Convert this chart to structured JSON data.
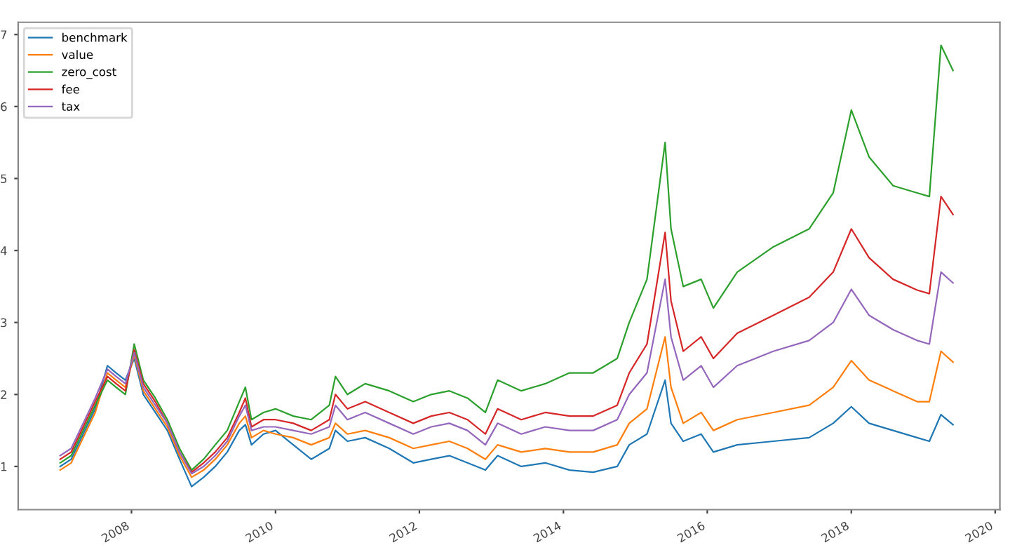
{
  "chart_data": {
    "type": "line",
    "x": [
      "2007-01-04",
      "2007-03",
      "2007-05",
      "2007-07",
      "2007-09",
      "2007-10-15",
      "2007-12",
      "2008-01-15",
      "2008-03",
      "2008-05",
      "2008-07",
      "2008-09",
      "2008-11",
      "2009-01",
      "2009-03",
      "2009-05",
      "2009-07",
      "2009-08",
      "2009-09",
      "2009-11",
      "2010-01",
      "2010-04",
      "2010-07",
      "2010-10",
      "2010-11",
      "2011-01",
      "2011-04",
      "2011-08",
      "2011-12",
      "2012-03",
      "2012-06",
      "2012-09",
      "2012-12",
      "2013-02",
      "2013-06",
      "2013-10",
      "2014-02",
      "2014-06",
      "2014-10",
      "2014-12",
      "2015-03",
      "2015-06",
      "2015-07",
      "2015-09",
      "2015-12",
      "2016-02",
      "2016-06",
      "2016-12",
      "2017-06",
      "2017-10",
      "2018-01",
      "2018-04",
      "2018-08",
      "2018-12",
      "2019-02",
      "2019-04",
      "2019-06"
    ],
    "series": [
      {
        "name": "benchmark",
        "color": "#1f77b4",
        "values": [
          1.0,
          1.1,
          1.45,
          1.8,
          2.4,
          2.3,
          2.2,
          2.5,
          2.0,
          1.75,
          1.5,
          1.1,
          0.72,
          0.85,
          1.0,
          1.2,
          1.5,
          1.58,
          1.3,
          1.45,
          1.5,
          1.3,
          1.1,
          1.25,
          1.5,
          1.35,
          1.4,
          1.25,
          1.05,
          1.1,
          1.15,
          1.05,
          0.95,
          1.15,
          1.0,
          1.05,
          0.95,
          0.92,
          1.0,
          1.3,
          1.45,
          2.2,
          1.6,
          1.35,
          1.45,
          1.2,
          1.3,
          1.35,
          1.4,
          1.6,
          1.83,
          1.6,
          1.5,
          1.4,
          1.35,
          1.72,
          1.58
        ]
      },
      {
        "name": "value",
        "color": "#ff7f0e",
        "values": [
          0.95,
          1.05,
          1.4,
          1.75,
          2.3,
          2.2,
          2.1,
          2.55,
          2.05,
          1.8,
          1.55,
          1.15,
          0.85,
          0.95,
          1.1,
          1.3,
          1.6,
          1.7,
          1.4,
          1.5,
          1.45,
          1.4,
          1.3,
          1.4,
          1.6,
          1.45,
          1.5,
          1.4,
          1.25,
          1.3,
          1.35,
          1.25,
          1.1,
          1.3,
          1.2,
          1.25,
          1.2,
          1.2,
          1.3,
          1.6,
          1.8,
          2.8,
          2.1,
          1.6,
          1.75,
          1.5,
          1.65,
          1.75,
          1.85,
          2.1,
          2.47,
          2.2,
          2.05,
          1.9,
          1.9,
          2.6,
          2.45
        ]
      },
      {
        "name": "zero_cost",
        "color": "#2ca02c",
        "values": [
          1.05,
          1.15,
          1.5,
          1.85,
          2.2,
          2.1,
          2.0,
          2.7,
          2.2,
          1.95,
          1.65,
          1.25,
          0.95,
          1.1,
          1.3,
          1.5,
          1.9,
          2.1,
          1.65,
          1.75,
          1.8,
          1.7,
          1.65,
          1.85,
          2.25,
          2.0,
          2.15,
          2.05,
          1.9,
          2.0,
          2.05,
          1.95,
          1.75,
          2.2,
          2.05,
          2.15,
          2.3,
          2.3,
          2.5,
          3.0,
          3.6,
          5.5,
          4.3,
          3.5,
          3.6,
          3.2,
          3.7,
          4.05,
          4.3,
          4.8,
          5.95,
          5.3,
          4.9,
          4.8,
          4.75,
          6.85,
          6.5
        ]
      },
      {
        "name": "fee",
        "color": "#d62728",
        "values": [
          1.1,
          1.2,
          1.55,
          1.9,
          2.25,
          2.15,
          2.05,
          2.62,
          2.15,
          1.9,
          1.6,
          1.2,
          0.92,
          1.05,
          1.2,
          1.4,
          1.75,
          1.95,
          1.55,
          1.65,
          1.65,
          1.6,
          1.5,
          1.65,
          2.0,
          1.8,
          1.9,
          1.75,
          1.6,
          1.7,
          1.75,
          1.65,
          1.45,
          1.8,
          1.65,
          1.75,
          1.7,
          1.7,
          1.85,
          2.3,
          2.7,
          4.25,
          3.3,
          2.6,
          2.8,
          2.5,
          2.85,
          3.1,
          3.35,
          3.7,
          4.3,
          3.9,
          3.6,
          3.45,
          3.4,
          4.75,
          4.5
        ]
      },
      {
        "name": "tax",
        "color": "#9467bd",
        "values": [
          1.15,
          1.25,
          1.6,
          1.95,
          2.35,
          2.25,
          2.15,
          2.58,
          2.1,
          1.85,
          1.6,
          1.2,
          0.9,
          1.0,
          1.15,
          1.35,
          1.7,
          1.85,
          1.5,
          1.55,
          1.55,
          1.5,
          1.45,
          1.55,
          1.85,
          1.65,
          1.75,
          1.6,
          1.45,
          1.55,
          1.6,
          1.5,
          1.3,
          1.6,
          1.45,
          1.55,
          1.5,
          1.5,
          1.65,
          2.0,
          2.3,
          3.6,
          2.8,
          2.2,
          2.4,
          2.1,
          2.4,
          2.6,
          2.75,
          3.0,
          3.46,
          3.1,
          2.9,
          2.75,
          2.7,
          3.7,
          3.55
        ]
      }
    ],
    "xlim": [
      "2006-06-05",
      "2020-01-25"
    ],
    "xticks": [
      {
        "value": "2008",
        "label": "2008"
      },
      {
        "value": "2010",
        "label": "2010"
      },
      {
        "value": "2012",
        "label": "2012"
      },
      {
        "value": "2014",
        "label": "2014"
      },
      {
        "value": "2016",
        "label": "2016"
      },
      {
        "value": "2018",
        "label": "2018"
      },
      {
        "value": "2020",
        "label": "2020"
      }
    ],
    "ylim": [
      0.4,
      7.17
    ],
    "yticks": [
      1,
      2,
      3,
      4,
      5,
      6,
      7
    ],
    "grid": false,
    "legend": "top left",
    "line_style": "solid"
  }
}
